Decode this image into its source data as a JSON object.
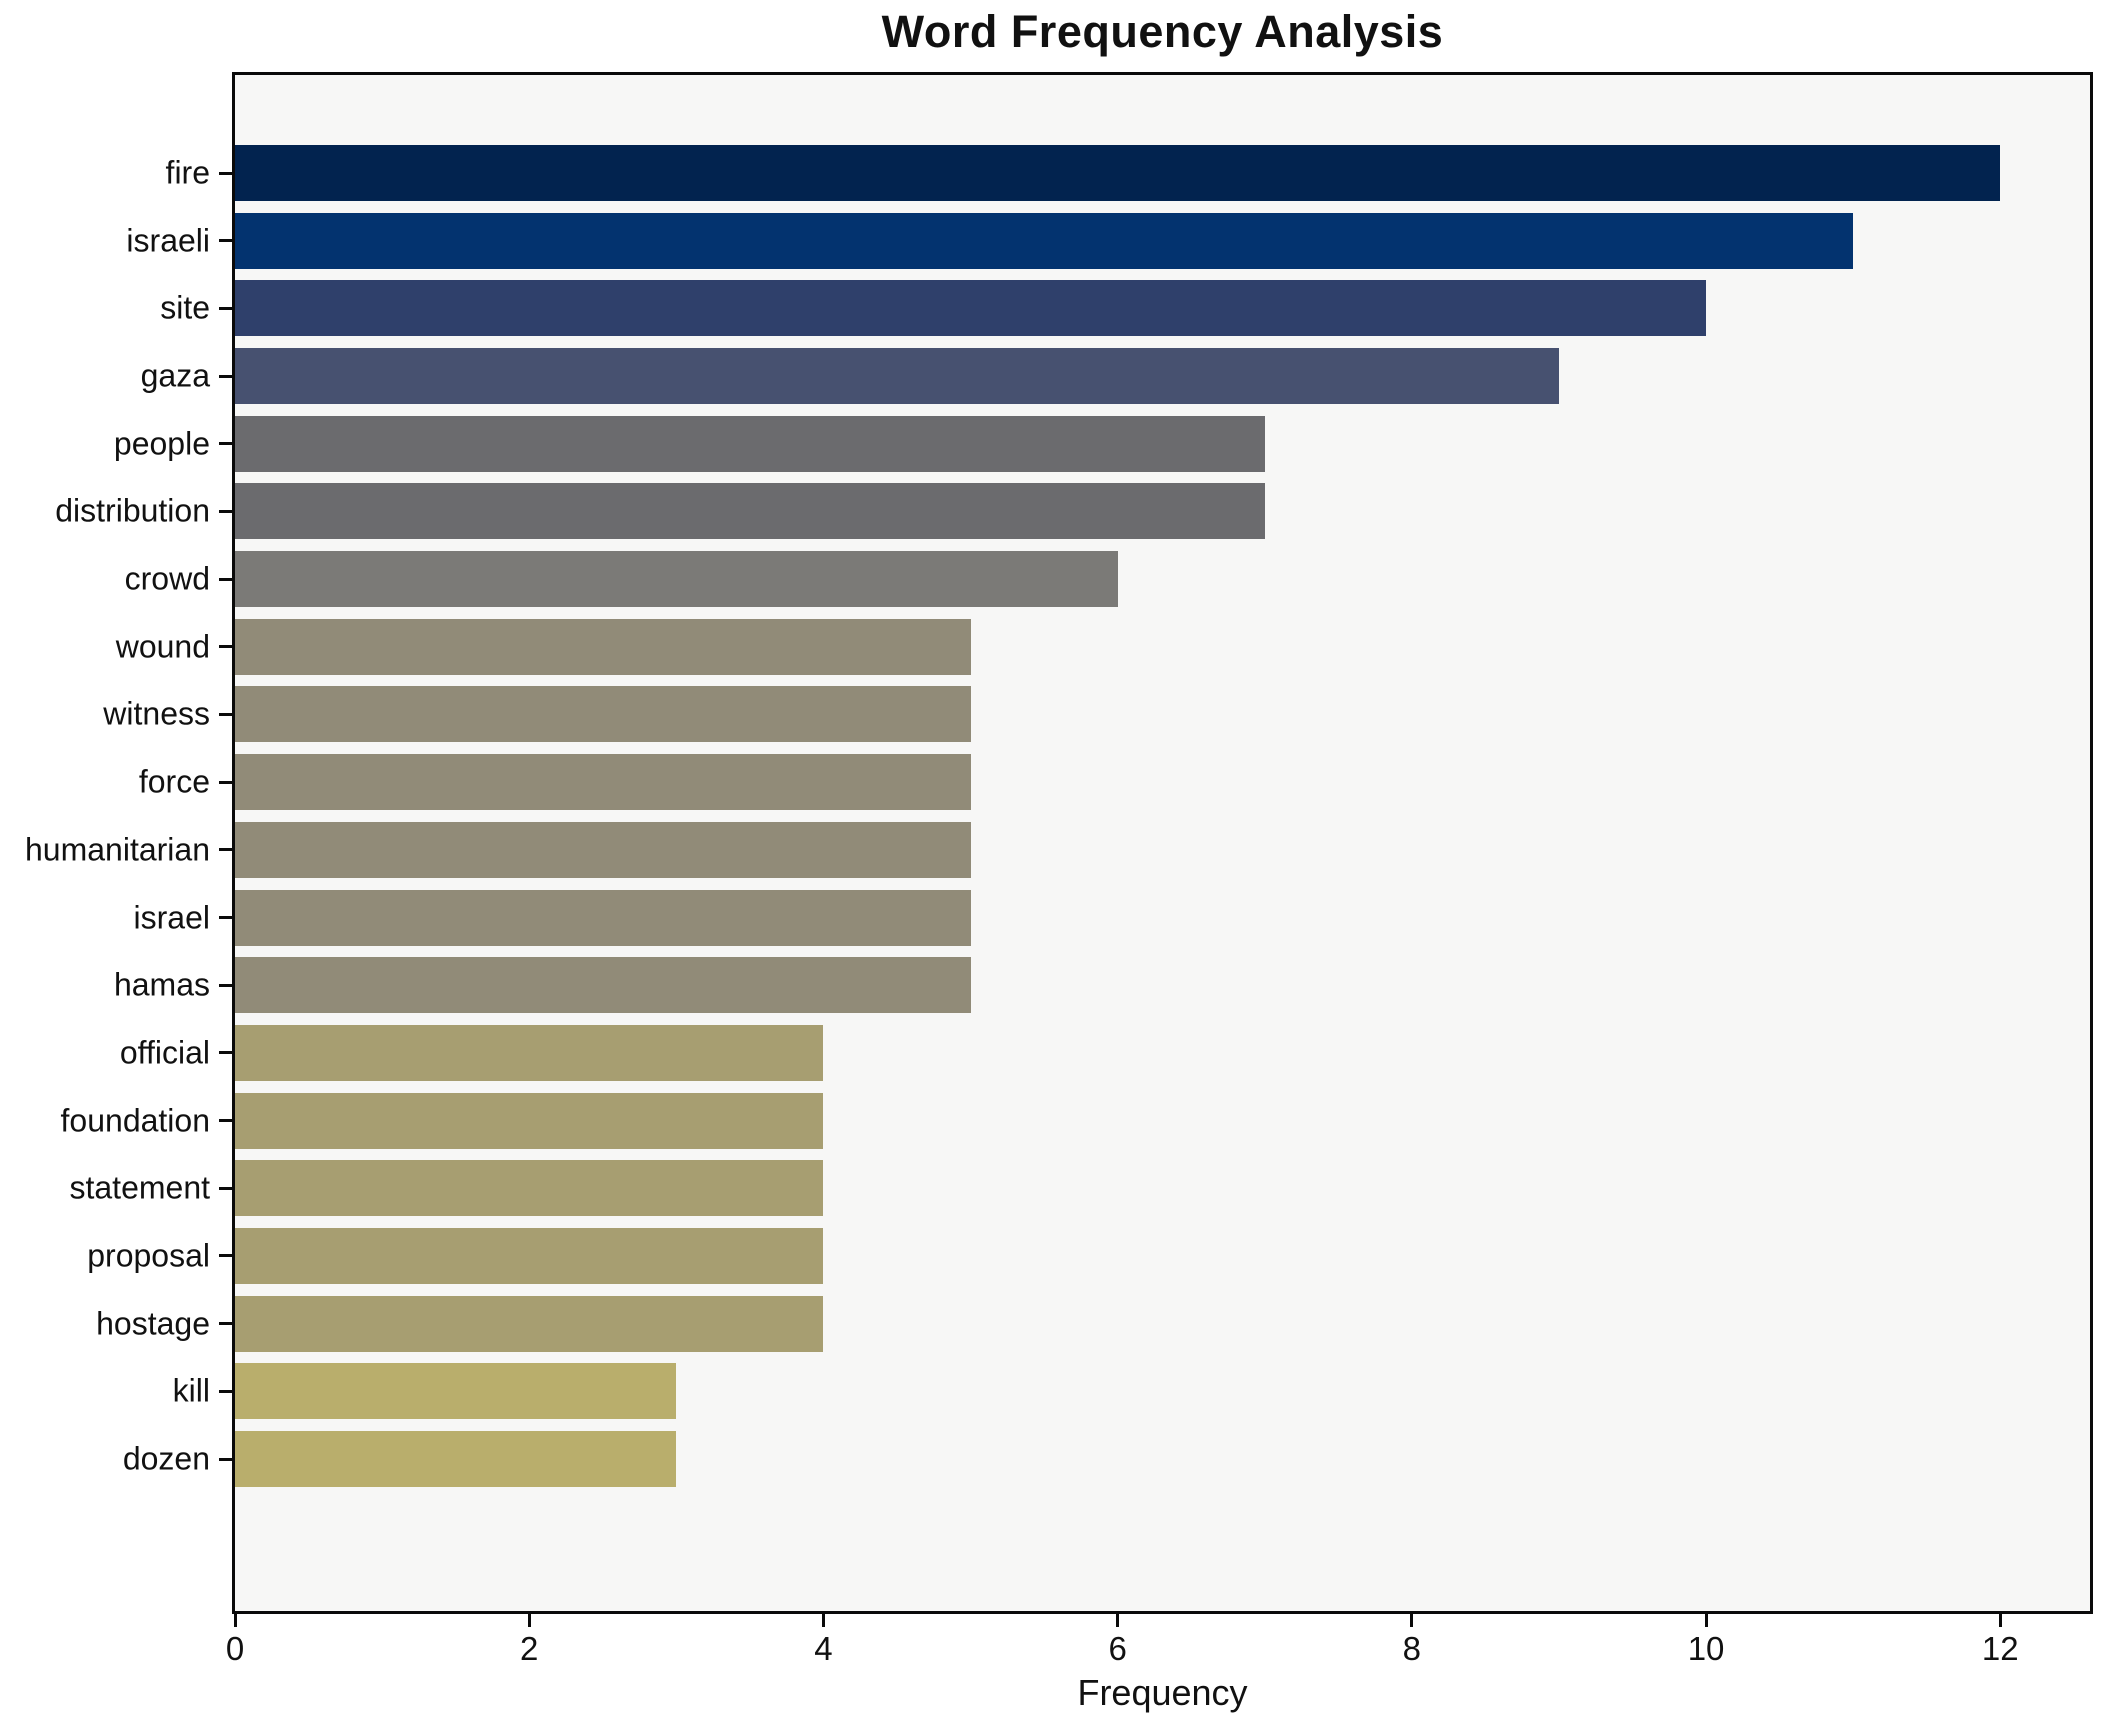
{
  "chart_data": {
    "type": "bar",
    "orientation": "horizontal",
    "title": "Word Frequency Analysis",
    "xlabel": "Frequency",
    "ylabel": "",
    "categories": [
      "fire",
      "israeli",
      "site",
      "gaza",
      "people",
      "distribution",
      "crowd",
      "wound",
      "witness",
      "force",
      "humanitarian",
      "israel",
      "hamas",
      "official",
      "foundation",
      "statement",
      "proposal",
      "hostage",
      "kill",
      "dozen"
    ],
    "values": [
      12,
      11,
      10,
      9,
      7,
      7,
      6,
      5,
      5,
      5,
      5,
      5,
      5,
      4,
      4,
      4,
      4,
      4,
      3,
      3
    ],
    "bar_colors": [
      "#02234f",
      "#03336f",
      "#2f406b",
      "#475170",
      "#6b6b6e",
      "#6b6b6e",
      "#7b7a77",
      "#918b78",
      "#918b78",
      "#918b78",
      "#918b78",
      "#918b78",
      "#918b78",
      "#a79e71",
      "#a79e71",
      "#a79e71",
      "#a79e71",
      "#a79e71",
      "#b9ae6c",
      "#b9ae6c"
    ],
    "xticks": [
      0,
      2,
      4,
      6,
      8,
      10,
      12
    ],
    "xlim": [
      0,
      12.61
    ],
    "grid": false,
    "plot_background": "#f7f7f6",
    "figure_background": "#ffffff",
    "frame_color": "#0a0a0a",
    "text_color": "#111111"
  }
}
